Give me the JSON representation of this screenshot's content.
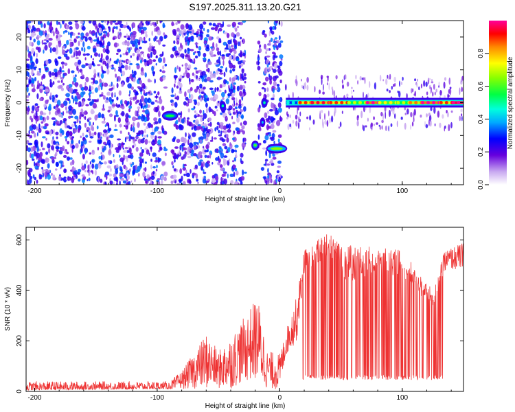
{
  "title": "S197.2025.311.13.20.G21",
  "chart_data": [
    {
      "type": "heatmap",
      "xlabel": "Height of straight line (km)",
      "ylabel": "Frequency (Hz)",
      "xlim": [
        -207,
        150
      ],
      "ylim": [
        -25,
        25
      ],
      "xticks": [
        -200,
        -100,
        0,
        100
      ],
      "yticks": [
        -20,
        -10,
        0,
        10,
        20
      ],
      "colorbar": {
        "label": "Normalized spectral amplitude",
        "range": [
          0,
          1
        ],
        "ticks": [
          0.0,
          0.2,
          0.4,
          0.6,
          0.8
        ]
      },
      "noise_region": {
        "x": [
          -207,
          2
        ],
        "gaps_x": [
          [
            -93,
            -88
          ],
          [
            -28,
            -18
          ],
          [
            -16,
            -14
          ]
        ],
        "amplitude": 0.3
      },
      "features": [
        {
          "x_start": -95,
          "x_end": -84,
          "freq": -4,
          "amplitude": 0.55
        },
        {
          "x_start": -48,
          "x_end": -45,
          "freq": -1,
          "amplitude": 0.5
        },
        {
          "x_start": -22,
          "x_end": -18,
          "freq": -13,
          "amplitude": 0.6
        },
        {
          "x_start": -14,
          "x_end": -11,
          "freq": 0,
          "amplitude": 0.5
        },
        {
          "x_start": -15,
          "x_end": -13,
          "freq": -6,
          "amplitude": 0.4
        },
        {
          "x_start": -10,
          "x_end": 5,
          "freq": -14,
          "amplitude": 0.65
        }
      ],
      "carrier": {
        "freq": 0,
        "points": [
          {
            "x": 5,
            "amp": 0.3
          },
          {
            "x": 15,
            "amp": 0.75
          },
          {
            "x": 25,
            "amp": 0.8
          },
          {
            "x": 40,
            "amp": 0.75
          },
          {
            "x": 55,
            "amp": 0.55
          },
          {
            "x": 70,
            "amp": 0.85
          },
          {
            "x": 80,
            "amp": 0.6
          },
          {
            "x": 95,
            "amp": 0.55
          },
          {
            "x": 105,
            "amp": 0.7
          },
          {
            "x": 115,
            "amp": 0.85
          },
          {
            "x": 130,
            "amp": 0.75
          },
          {
            "x": 140,
            "amp": 0.95
          },
          {
            "x": 150,
            "amp": 0.95
          }
        ]
      }
    },
    {
      "type": "line",
      "xlabel": "Height of straight line (km)",
      "ylabel": "SNR (10 * v/v)",
      "xlim": [
        -207,
        150
      ],
      "ylim": [
        0,
        650
      ],
      "xticks": [
        -200,
        -100,
        0,
        100
      ],
      "yticks": [
        0,
        200,
        400,
        600
      ],
      "color": "#ee3333",
      "envelope": [
        {
          "x": -207,
          "lo": 5,
          "hi": 40
        },
        {
          "x": -90,
          "lo": 10,
          "hi": 40
        },
        {
          "x": -80,
          "lo": 10,
          "hi": 80
        },
        {
          "x": -60,
          "lo": 10,
          "hi": 230
        },
        {
          "x": -50,
          "lo": 10,
          "hi": 160
        },
        {
          "x": -40,
          "lo": 10,
          "hi": 220
        },
        {
          "x": -28,
          "lo": 40,
          "hi": 300
        },
        {
          "x": -18,
          "lo": 40,
          "hi": 380
        },
        {
          "x": -10,
          "lo": 10,
          "hi": 160
        },
        {
          "x": 0,
          "lo": 5,
          "hi": 150
        },
        {
          "x": 5,
          "lo": 140,
          "hi": 240
        },
        {
          "x": 14,
          "lo": 200,
          "hi": 380
        },
        {
          "x": 20,
          "lo": 470,
          "hi": 560
        },
        {
          "x": 30,
          "lo": 500,
          "hi": 600
        },
        {
          "x": 42,
          "lo": 530,
          "hi": 640
        },
        {
          "x": 55,
          "lo": 430,
          "hi": 580
        },
        {
          "x": 80,
          "lo": 460,
          "hi": 570
        },
        {
          "x": 100,
          "lo": 460,
          "hi": 560
        },
        {
          "x": 115,
          "lo": 380,
          "hi": 460
        },
        {
          "x": 125,
          "lo": 330,
          "hi": 400
        },
        {
          "x": 135,
          "lo": 480,
          "hi": 560
        },
        {
          "x": 150,
          "lo": 480,
          "hi": 590
        }
      ],
      "dropouts": {
        "x_range": [
          17,
          133
        ],
        "low_value": 55
      }
    }
  ]
}
